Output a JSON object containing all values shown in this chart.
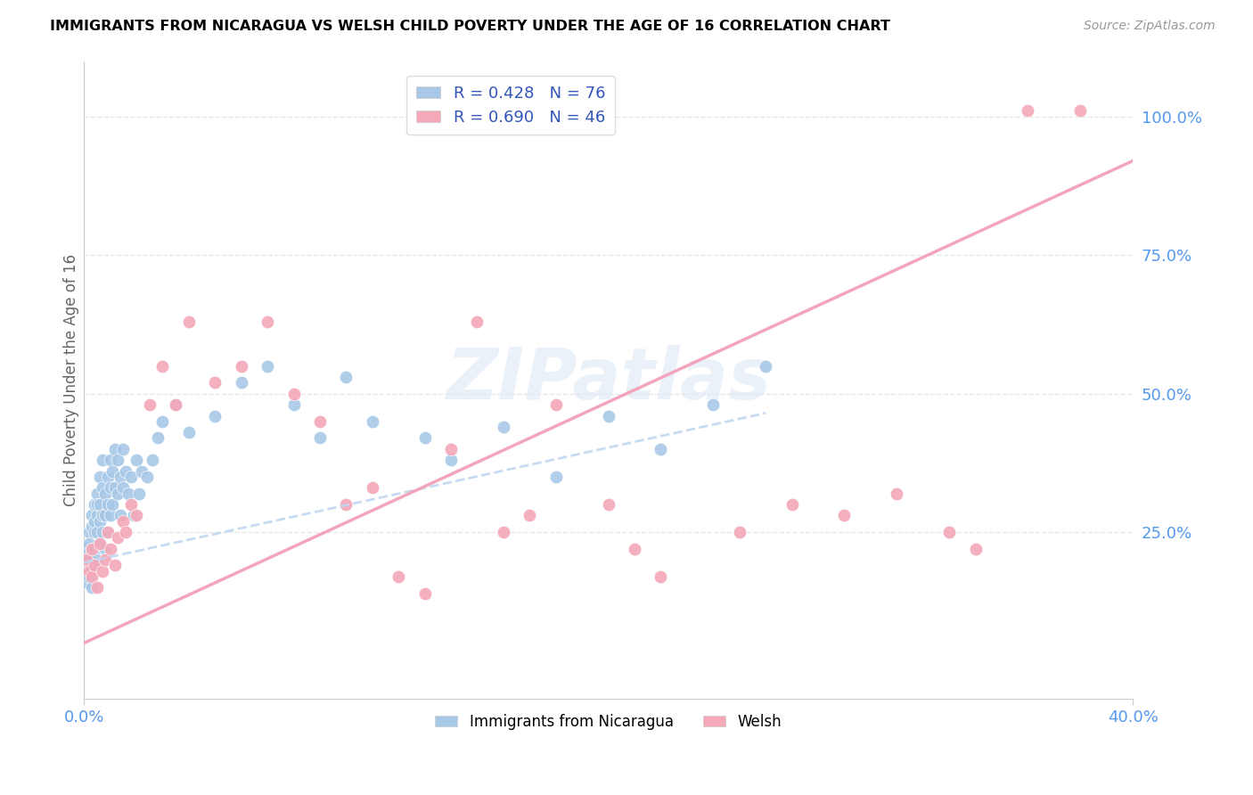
{
  "title": "IMMIGRANTS FROM NICARAGUA VS WELSH CHILD POVERTY UNDER THE AGE OF 16 CORRELATION CHART",
  "source": "Source: ZipAtlas.com",
  "ylabel": "Child Poverty Under the Age of 16",
  "legend_label1": "Immigrants from Nicaragua",
  "legend_label2": "Welsh",
  "r1": 0.428,
  "n1": 76,
  "r2": 0.69,
  "n2": 46,
  "color_blue": "#a8c8e8",
  "color_pink": "#f4a8b8",
  "color_line_blue": "#b8d4ec",
  "color_line_pink": "#f0a0b8",
  "xlim": [
    0.0,
    0.4
  ],
  "ylim": [
    -0.05,
    1.1
  ],
  "xticks": [
    0.0,
    0.4
  ],
  "xticklabels": [
    "0.0%",
    "40.0%"
  ],
  "yticks": [
    0.0,
    0.25,
    0.5,
    0.75,
    1.0
  ],
  "yticklabels": [
    "",
    "25.0%",
    "50.0%",
    "75.0%",
    "100.0%"
  ],
  "blue_scatter_x": [
    0.001,
    0.001,
    0.001,
    0.002,
    0.002,
    0.002,
    0.002,
    0.003,
    0.003,
    0.003,
    0.003,
    0.003,
    0.004,
    0.004,
    0.004,
    0.004,
    0.005,
    0.005,
    0.005,
    0.005,
    0.005,
    0.006,
    0.006,
    0.006,
    0.006,
    0.007,
    0.007,
    0.007,
    0.007,
    0.008,
    0.008,
    0.008,
    0.009,
    0.009,
    0.009,
    0.01,
    0.01,
    0.01,
    0.011,
    0.011,
    0.012,
    0.012,
    0.013,
    0.013,
    0.014,
    0.014,
    0.015,
    0.015,
    0.016,
    0.017,
    0.018,
    0.019,
    0.02,
    0.021,
    0.022,
    0.024,
    0.026,
    0.028,
    0.03,
    0.035,
    0.04,
    0.05,
    0.06,
    0.07,
    0.08,
    0.09,
    0.1,
    0.11,
    0.13,
    0.14,
    0.16,
    0.18,
    0.2,
    0.22,
    0.24,
    0.26
  ],
  "blue_scatter_y": [
    0.18,
    0.22,
    0.16,
    0.25,
    0.2,
    0.23,
    0.17,
    0.28,
    0.22,
    0.19,
    0.26,
    0.15,
    0.3,
    0.25,
    0.22,
    0.27,
    0.32,
    0.28,
    0.25,
    0.3,
    0.2,
    0.35,
    0.3,
    0.27,
    0.23,
    0.38,
    0.33,
    0.28,
    0.25,
    0.32,
    0.28,
    0.22,
    0.35,
    0.3,
    0.25,
    0.38,
    0.33,
    0.28,
    0.36,
    0.3,
    0.4,
    0.33,
    0.38,
    0.32,
    0.35,
    0.28,
    0.4,
    0.33,
    0.36,
    0.32,
    0.35,
    0.28,
    0.38,
    0.32,
    0.36,
    0.35,
    0.38,
    0.42,
    0.45,
    0.48,
    0.43,
    0.46,
    0.52,
    0.55,
    0.48,
    0.42,
    0.53,
    0.45,
    0.42,
    0.38,
    0.44,
    0.35,
    0.46,
    0.4,
    0.48,
    0.55
  ],
  "pink_scatter_x": [
    0.001,
    0.002,
    0.003,
    0.003,
    0.004,
    0.005,
    0.006,
    0.007,
    0.008,
    0.009,
    0.01,
    0.012,
    0.013,
    0.015,
    0.016,
    0.018,
    0.02,
    0.025,
    0.03,
    0.035,
    0.04,
    0.05,
    0.06,
    0.07,
    0.08,
    0.09,
    0.1,
    0.11,
    0.12,
    0.13,
    0.14,
    0.15,
    0.16,
    0.17,
    0.18,
    0.2,
    0.21,
    0.22,
    0.25,
    0.27,
    0.29,
    0.31,
    0.33,
    0.34,
    0.36,
    0.38
  ],
  "pink_scatter_y": [
    0.2,
    0.18,
    0.22,
    0.17,
    0.19,
    0.15,
    0.23,
    0.18,
    0.2,
    0.25,
    0.22,
    0.19,
    0.24,
    0.27,
    0.25,
    0.3,
    0.28,
    0.48,
    0.55,
    0.48,
    0.63,
    0.52,
    0.55,
    0.63,
    0.5,
    0.45,
    0.3,
    0.33,
    0.17,
    0.14,
    0.4,
    0.63,
    0.25,
    0.28,
    0.48,
    0.3,
    0.22,
    0.17,
    0.25,
    0.3,
    0.28,
    0.32,
    0.25,
    0.22,
    1.01,
    1.01
  ],
  "blue_line_x": [
    0.0,
    0.26
  ],
  "blue_line_y": [
    0.195,
    0.465
  ],
  "pink_line_x": [
    0.0,
    0.4
  ],
  "pink_line_y": [
    0.05,
    0.92
  ],
  "watermark": "ZIPatlas",
  "grid_yticks": [
    0.25,
    0.5,
    0.75,
    1.0
  ],
  "grid_color": "#e8e8e8"
}
